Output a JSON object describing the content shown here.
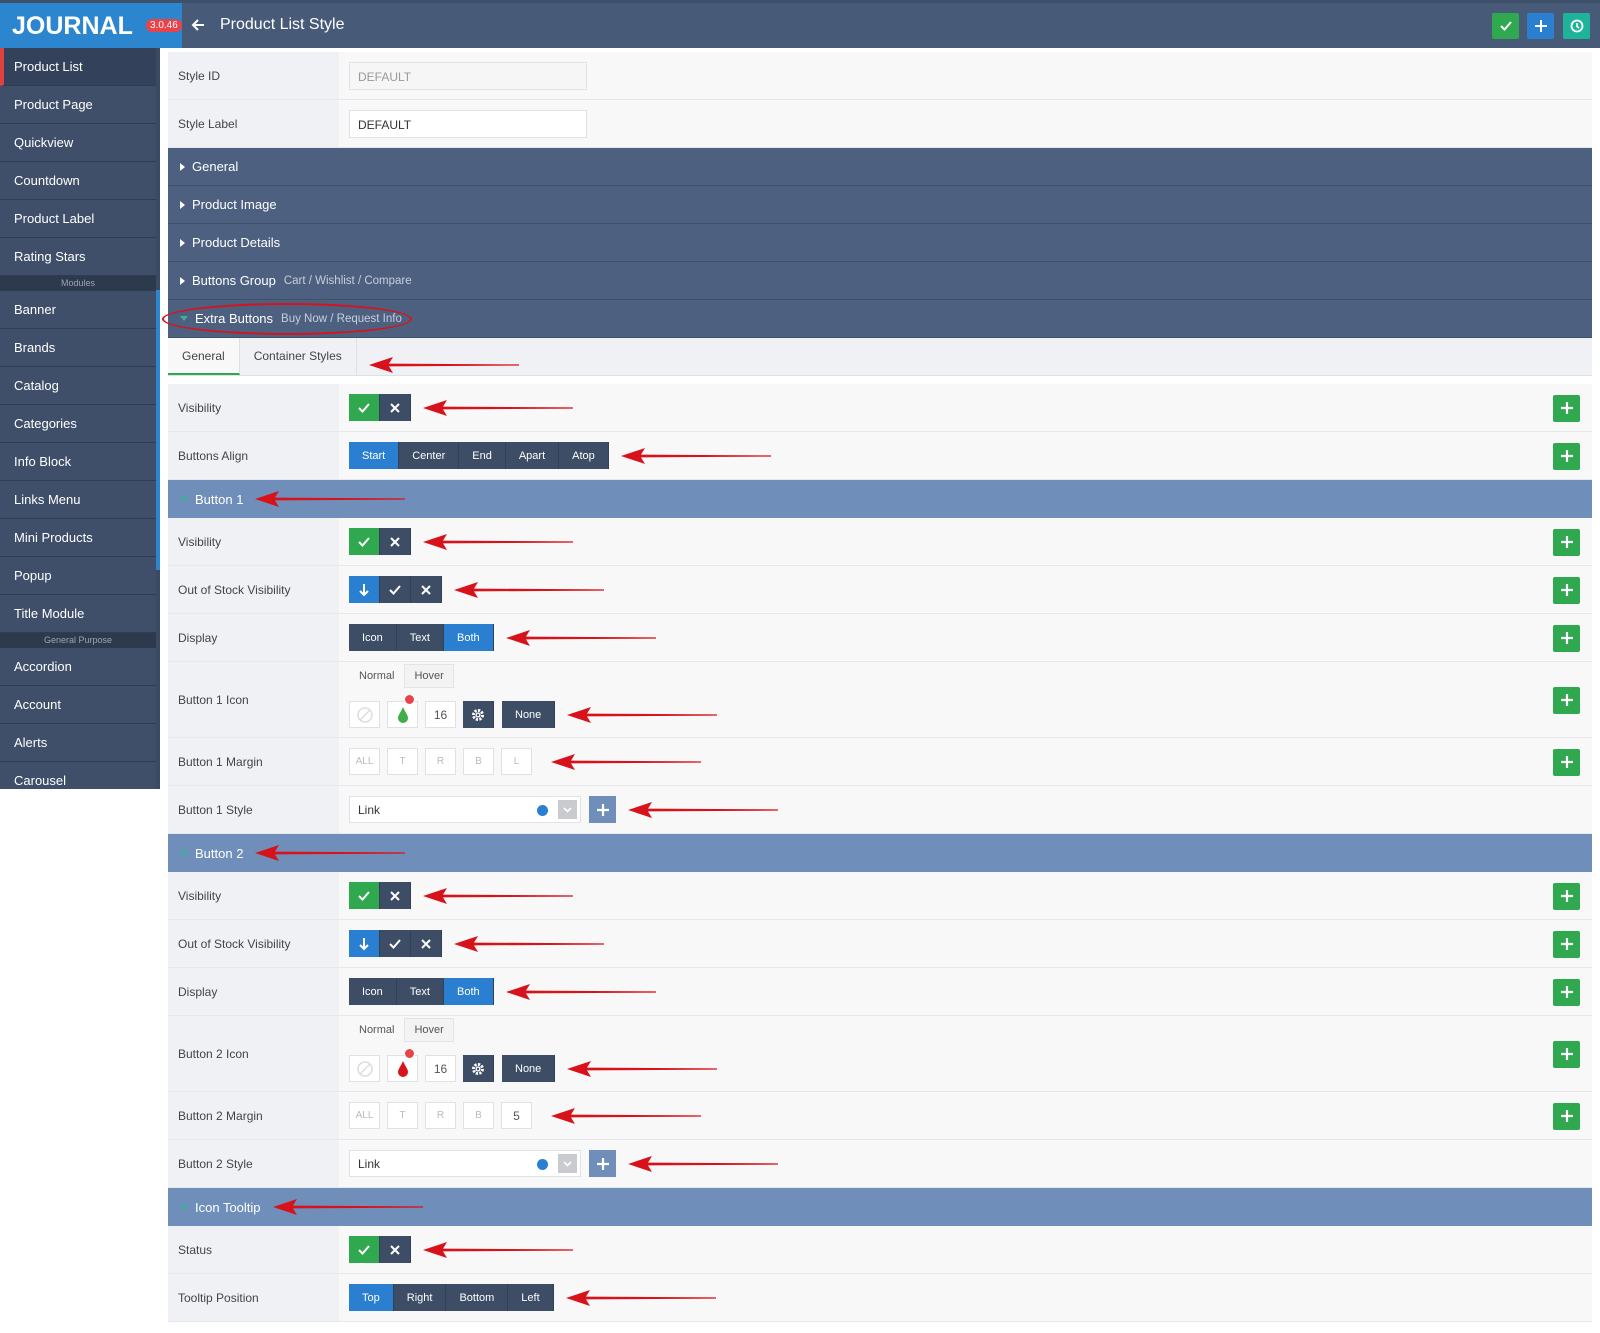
{
  "header": {
    "logo": "JOURNAL",
    "version": "3.0.46",
    "title": "Product List Style"
  },
  "sidebar": {
    "groups": [
      {
        "items": [
          "Product List",
          "Product Page",
          "Quickview",
          "Countdown",
          "Product Label",
          "Rating Stars"
        ]
      },
      {
        "heading": "Modules",
        "items": [
          "Banner",
          "Brands",
          "Catalog",
          "Categories",
          "Info Block",
          "Links Menu",
          "Mini Products",
          "Popup",
          "Title Module"
        ]
      },
      {
        "heading": "General Purpose",
        "items": [
          "Accordion",
          "Account",
          "Alerts",
          "Carousel"
        ]
      }
    ]
  },
  "form": {
    "entries": [
      {
        "kind": "field",
        "label": "Style ID",
        "control": {
          "kind": "input",
          "value": "DEFAULT",
          "disabled": true
        }
      },
      {
        "kind": "field",
        "label": "Style Label",
        "control": {
          "kind": "input",
          "value": "DEFAULT"
        }
      },
      {
        "kind": "section",
        "label": "General"
      },
      {
        "kind": "section",
        "label": "Product Image"
      },
      {
        "kind": "section",
        "label": "Product Details"
      },
      {
        "kind": "section",
        "label": "Buttons Group",
        "sublabel": "Cart / Wishlist / Compare"
      },
      {
        "kind": "section",
        "label": "Extra Buttons",
        "sublabel": "Buy Now / Request Info",
        "open": true
      },
      {
        "kind": "tabs",
        "tabs": [
          "General",
          "Container Styles"
        ],
        "active": 0
      },
      {
        "kind": "field",
        "label": "Visibility",
        "control": {
          "kind": "toggle"
        },
        "add_button": true
      },
      {
        "kind": "field",
        "label": "Buttons Align",
        "control": {
          "kind": "segmented",
          "options": [
            "Start",
            "Center",
            "End",
            "Apart",
            "Atop"
          ],
          "active": 0
        },
        "add_button": true
      },
      {
        "kind": "subsection",
        "label": "Button 1"
      },
      {
        "kind": "field",
        "label": "Visibility",
        "control": {
          "kind": "toggle"
        },
        "add_button": true
      },
      {
        "kind": "field",
        "label": "Out of Stock Visibility",
        "control": {
          "kind": "tristate"
        },
        "add_button": true
      },
      {
        "kind": "field",
        "label": "Display",
        "control": {
          "kind": "segmented",
          "options": [
            "Icon",
            "Text",
            "Both"
          ],
          "active": 2
        },
        "add_button": true
      },
      {
        "kind": "field",
        "label": "Button 1 Icon",
        "control": {
          "kind": "icon",
          "tabs": [
            "Normal",
            "Hover"
          ],
          "size": "16",
          "button": "None",
          "color": "#3fae49"
        },
        "add_button": true
      },
      {
        "kind": "field",
        "label": "Button 1 Margin",
        "control": {
          "kind": "margin",
          "fields": [
            "ALL",
            "T",
            "R",
            "B",
            "L"
          ]
        },
        "add_button": true
      },
      {
        "kind": "field",
        "label": "Button 1 Style",
        "control": {
          "kind": "select",
          "value": "Link"
        }
      },
      {
        "kind": "subsection",
        "label": "Button 2"
      },
      {
        "kind": "field",
        "label": "Visibility",
        "control": {
          "kind": "toggle"
        },
        "add_button": true
      },
      {
        "kind": "field",
        "label": "Out of Stock Visibility",
        "control": {
          "kind": "tristate"
        },
        "add_button": true
      },
      {
        "kind": "field",
        "label": "Display",
        "control": {
          "kind": "segmented",
          "options": [
            "Icon",
            "Text",
            "Both"
          ],
          "active": 2
        },
        "add_button": true
      },
      {
        "kind": "field",
        "label": "Button 2 Icon",
        "control": {
          "kind": "icon",
          "tabs": [
            "Normal",
            "Hover"
          ],
          "size": "16",
          "button": "None",
          "color": "#d7141c"
        },
        "add_button": true
      },
      {
        "kind": "field",
        "label": "Button 2 Margin",
        "control": {
          "kind": "margin",
          "fields": [
            "ALL",
            "T",
            "R",
            "B",
            "5"
          ]
        },
        "add_button": true
      },
      {
        "kind": "field",
        "label": "Button 2 Style",
        "control": {
          "kind": "select",
          "value": "Link"
        }
      },
      {
        "kind": "subsection",
        "label": "Icon Tooltip"
      },
      {
        "kind": "field",
        "label": "Status",
        "control": {
          "kind": "toggle"
        }
      },
      {
        "kind": "field",
        "label": "Tooltip Position",
        "control": {
          "kind": "segmented",
          "options": [
            "Top",
            "Right",
            "Bottom",
            "Left"
          ],
          "active": 0
        }
      }
    ]
  }
}
